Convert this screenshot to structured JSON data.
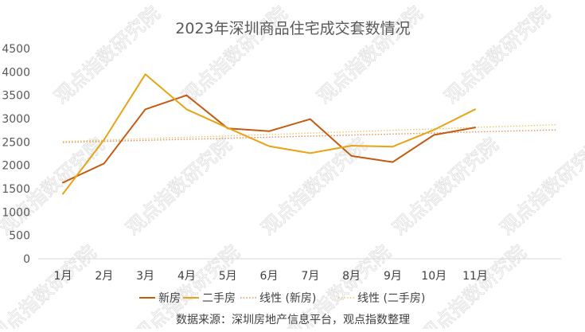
{
  "chart_data": {
    "type": "line",
    "title": "2023年深圳商品住宅成交套数情况",
    "categories": [
      "1月",
      "2月",
      "3月",
      "4月",
      "5月",
      "6月",
      "7月",
      "8月",
      "9月",
      "10月",
      "11月"
    ],
    "ylim": [
      0,
      4500
    ],
    "yticks": [
      0,
      500,
      1000,
      1500,
      2000,
      2500,
      3000,
      3500,
      4000,
      4500
    ],
    "grid": false,
    "legend_position": "bottom",
    "series": [
      {
        "name": "新房",
        "color": "#C55A11",
        "style": "solid",
        "values": [
          1630,
          2040,
          3200,
          3500,
          2790,
          2730,
          2990,
          2200,
          2070,
          2650,
          2810
        ]
      },
      {
        "name": "二手房",
        "color": "#E8A317",
        "style": "solid",
        "values": [
          1390,
          2550,
          3950,
          3200,
          2800,
          2410,
          2260,
          2420,
          2400,
          2760,
          3200
        ]
      }
    ],
    "trendlines": [
      {
        "name": "线性 (新房)",
        "color": "#E4905A",
        "style": "dotted",
        "of_series": "新房",
        "start": 2490,
        "end": 2760
      },
      {
        "name": "线性 (二手房)",
        "color": "#F2C56B",
        "style": "dotted",
        "of_series": "二手房",
        "start": 2510,
        "end": 2870
      }
    ],
    "source_note": "数据来源：深圳房地产信息平台，观点指数整理",
    "watermark_text": "观点指数研究院"
  }
}
